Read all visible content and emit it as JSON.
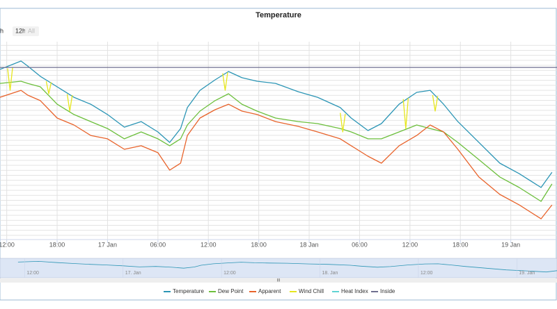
{
  "chart_data": {
    "type": "line",
    "title": "Temperature",
    "range_buttons": [
      "h",
      "12h",
      "All"
    ],
    "xlim": [
      -0.8,
      65.5
    ],
    "ylim": [
      0,
      100
    ],
    "xticks": [
      {
        "value": 0,
        "label": "12:00"
      },
      {
        "value": 6,
        "label": "18:00"
      },
      {
        "value": 12,
        "label": "17 Jan"
      },
      {
        "value": 18,
        "label": "06:00"
      },
      {
        "value": 24,
        "label": "12:00"
      },
      {
        "value": 30,
        "label": "18:00"
      },
      {
        "value": 36,
        "label": "18 Jan"
      },
      {
        "value": 42,
        "label": "06:00"
      },
      {
        "value": 48,
        "label": "12:00"
      },
      {
        "value": 54,
        "label": "18:00"
      },
      {
        "value": 60,
        "label": "19 Jan"
      }
    ],
    "x": [
      -0.8,
      1.7,
      2.5,
      4,
      6,
      8,
      10,
      12,
      14,
      16,
      18,
      19.4,
      20.7,
      21.5,
      23,
      24.8,
      26.4,
      28,
      29.8,
      32,
      34.7,
      37,
      39.7,
      41,
      43,
      44.6,
      46.7,
      48.8,
      50.4,
      52,
      53.7,
      56.2,
      58.7,
      61,
      63.6,
      64.9
    ],
    "series": [
      {
        "name": "Temperature",
        "color": "#2b95b5",
        "values": [
          86.0,
          90.2,
          87.7,
          82.5,
          77.2,
          71.9,
          68.4,
          63.2,
          56.8,
          59.6,
          54.4,
          49.1,
          56.1,
          66.7,
          75.4,
          80.7,
          84.9,
          81.8,
          80.0,
          78.9,
          74.7,
          71.9,
          66.7,
          61.4,
          55.1,
          58.6,
          68.4,
          74.4,
          75.4,
          68.4,
          59.6,
          49.1,
          38.6,
          33.3,
          26.3,
          34.0
        ]
      },
      {
        "name": "Dew Point",
        "color": "#6cbf3c",
        "values": [
          78.9,
          80.0,
          78.9,
          77.2,
          68.4,
          63.2,
          59.6,
          56.1,
          50.9,
          54.4,
          50.9,
          47.4,
          50.9,
          57.9,
          64.9,
          70.2,
          73.7,
          68.4,
          64.9,
          61.4,
          59.6,
          58.6,
          56.1,
          54.4,
          50.9,
          50.9,
          54.4,
          57.9,
          56.1,
          54.4,
          49.1,
          40.4,
          31.6,
          26.3,
          19.3,
          28.1
        ]
      },
      {
        "name": "Apparent",
        "color": "#e8632b",
        "values": [
          71.9,
          75.4,
          73.0,
          70.2,
          61.4,
          57.9,
          52.6,
          50.9,
          45.6,
          47.4,
          43.9,
          35.1,
          38.6,
          52.6,
          61.4,
          65.6,
          68.4,
          64.9,
          63.2,
          59.6,
          57.2,
          54.4,
          50.9,
          47.4,
          42.1,
          38.6,
          47.4,
          52.6,
          57.9,
          54.4,
          45.6,
          31.6,
          22.8,
          17.5,
          10.5,
          17.5
        ]
      },
      {
        "name": "Wind Chill",
        "color": "#e6e61e",
        "x": [
          0.1,
          0.4,
          0.7,
          2,
          4.7,
          5,
          5.3,
          6,
          7.2,
          7.5,
          7.8,
          9,
          25.7,
          26,
          26.3,
          30,
          39.7,
          40,
          40.3,
          45,
          47.2,
          47.5,
          47.8,
          49,
          50.7,
          51,
          51.3
        ],
        "values": [
          86.5,
          75.4,
          87.0,
          null,
          80.0,
          73.7,
          79.5,
          null,
          73.5,
          64.9,
          73.0,
          null,
          84.0,
          75.4,
          84.5,
          null,
          64.0,
          54.4,
          63.5,
          null,
          71.0,
          56.1,
          71.5,
          null,
          73.0,
          64.9,
          72.5
        ]
      },
      {
        "name": "Heat Index",
        "color": "#5fd3d3",
        "x": [],
        "values": []
      },
      {
        "name": "Inside",
        "color": "#6f6f8f",
        "x": [
          -0.8,
          65.5
        ],
        "values": [
          87.0,
          87.0
        ]
      }
    ],
    "navigator": {
      "xlim": [
        -3,
        64.9
      ],
      "xticks": [
        {
          "value": 0,
          "label": "12:00"
        },
        {
          "value": 12,
          "label": "17. Jan"
        },
        {
          "value": 24,
          "label": "12:00"
        },
        {
          "value": 36,
          "label": "18. Jan"
        },
        {
          "value": 48,
          "label": "12:00"
        },
        {
          "value": 60,
          "label": "19. Jan"
        }
      ]
    }
  }
}
